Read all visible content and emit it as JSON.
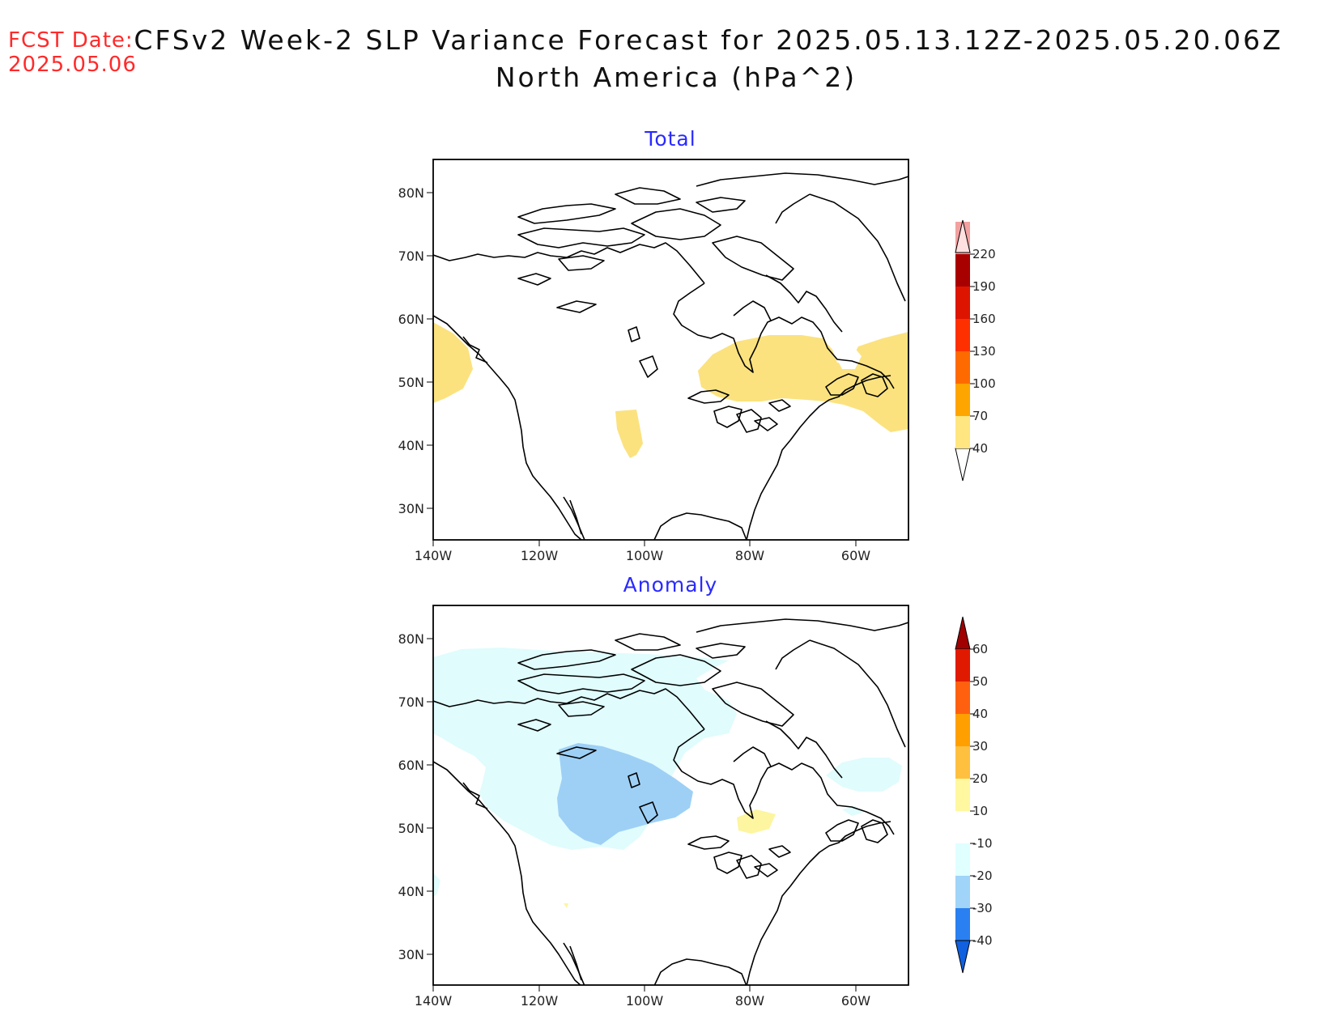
{
  "header": {
    "fcst_label": "FCST Date:",
    "fcst_date": "2025.05.06",
    "title_line1": "CFSv2 Week-2 SLP Variance Forecast for 2025.05.13.12Z-2025.05.20.06Z",
    "title_line2": "North America (hPa^2)"
  },
  "axes": {
    "lat_ticks": [
      "80N",
      "70N",
      "60N",
      "50N",
      "40N",
      "30N"
    ],
    "lon_ticks": [
      "140W",
      "120W",
      "100W",
      "80W",
      "60W"
    ]
  },
  "panels": [
    {
      "title": "Total",
      "title_color": "#2a2aff",
      "colorbar": {
        "labels": [
          "40",
          "70",
          "100",
          "130",
          "160",
          "190",
          "220"
        ],
        "colors": [
          "#ffe680",
          "#ffa500",
          "#ff6a00",
          "#ff3000",
          "#dd1500",
          "#a80000",
          "#f3a0a0",
          "#ffe0e0"
        ]
      },
      "shaded": {
        "fill": "#fbe27e",
        "category": "40-70"
      }
    },
    {
      "title": "Anomaly",
      "title_color": "#2a2aff",
      "colorbar": {
        "labels": [
          "60",
          "50",
          "40",
          "30",
          "20",
          "10",
          "-10",
          "-20",
          "-30",
          "-40"
        ],
        "colors": [
          "#a00000",
          "#e01a00",
          "#ff6010",
          "#ffa000",
          "#ffc040",
          "#fff8a0",
          "#ffffff",
          "#e0ffff",
          "#a0d4f8",
          "#2a80f0",
          "#1060e0"
        ]
      },
      "shaded": {
        "light_blue": "#e0fcfd",
        "mid_blue": "#9ed0f6",
        "yellow": "#fdf5a0"
      }
    }
  ]
}
